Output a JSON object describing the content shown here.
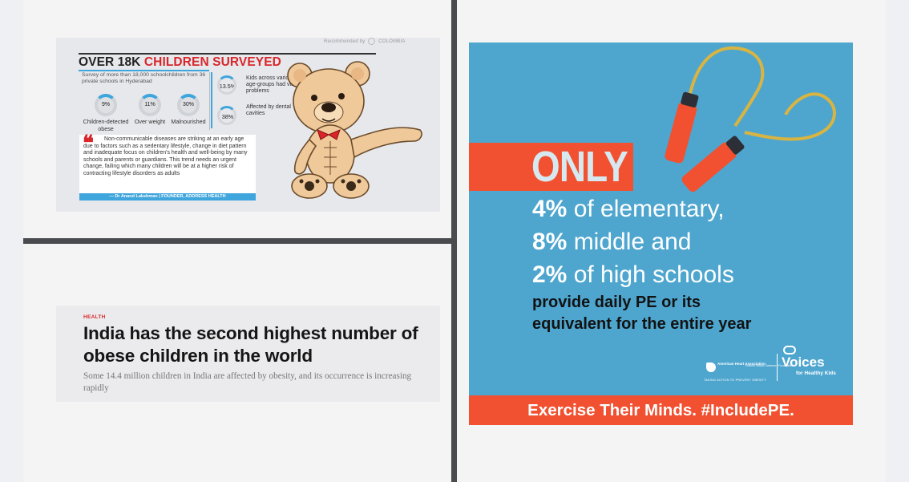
{
  "recommended": {
    "label": "Recommended by",
    "brand": "COLOMBIA"
  },
  "infographic": {
    "headline_black": "OVER 18K ",
    "headline_red": "CHILDREN SURVEYED",
    "survey_desc": "Survey of more than 18,000 schoolchildren from 36 private schools in Hyderabad",
    "stats": [
      {
        "value": "9%",
        "label": "Children-detected obese"
      },
      {
        "value": "11%",
        "label": "Over weight"
      },
      {
        "value": "30%",
        "label": "Malnourished"
      }
    ],
    "side_stats": [
      {
        "value": "13.5%",
        "label": "Kids across various age-groups had vision problems"
      },
      {
        "value": "38%",
        "label": "Affected by dental cavities"
      }
    ],
    "quote": "Non-communicable diseases are striking at an early age due to factors such as a sedentary lifestyle, change in diet pattern and inadequate focus on children's health and well-being by many schools and parents or guardians. This trend needs an urgent change, failing which many children will be at a higher risk of contracting lifestyle disorders as adults",
    "quote_author": "— Dr Anand Lakshman | FOUNDER, ADDRESS HEALTH"
  },
  "article": {
    "category": "HEALTH",
    "title": "India has the second highest number of obese children in the world",
    "description": "Some 14.4 million children in India are affected by obesity, and its occurrence is increasing rapidly"
  },
  "poster": {
    "only": "ONLY",
    "line1_bold": "4%",
    "line1_rest": " of elementary,",
    "line2_bold": "8%",
    "line2_rest": " middle and",
    "line3_bold": "2%",
    "line3_rest": " of high schools",
    "sub1": "provide daily PE or its",
    "sub2": "equivalent for the entire year",
    "aha_name": "American Heart Association",
    "rwj_name": "Robert Wood Johnson Foundation",
    "logo_tagline": "TAKING ACTION TO PREVENT OBESITY",
    "voices": "Voices",
    "voices_sub": "for Healthy Kids",
    "footer": "Exercise Their Minds.  #IncludePE.",
    "colors": {
      "background": "#4ea6cf",
      "accent": "#f15130"
    }
  }
}
